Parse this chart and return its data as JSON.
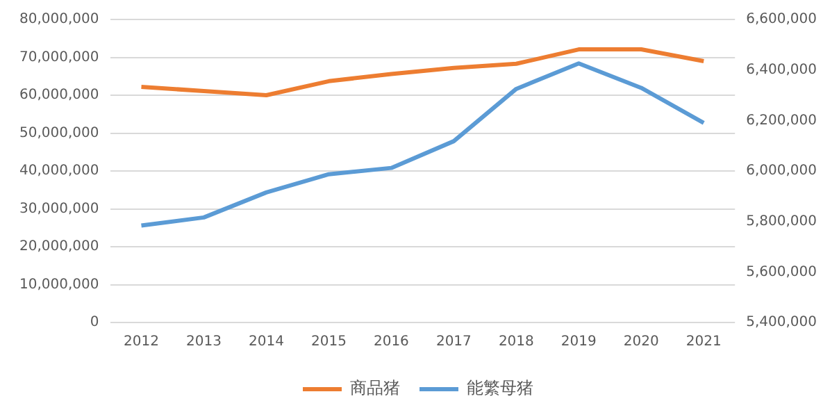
{
  "chart_data": {
    "type": "line",
    "categories": [
      "2012",
      "2013",
      "2014",
      "2015",
      "2016",
      "2017",
      "2018",
      "2019",
      "2020",
      "2021"
    ],
    "series": [
      {
        "name": "商品猪",
        "color": "#ed7d31",
        "values": [
          62200000,
          61100000,
          60000000,
          63700000,
          65600000,
          67200000,
          68300000,
          72100000,
          72100000,
          69000000
        ]
      },
      {
        "name": "能繁母猪",
        "color": "#5b9bd5",
        "axis": "y2",
        "values": [
          5784000,
          5816000,
          5915000,
          5987000,
          6012000,
          6118000,
          6325000,
          6426000,
          6329000,
          6190000
        ]
      }
    ],
    "ylim": [
      0,
      80000000
    ],
    "yticks": [
      0,
      {
        "value": 10000000,
        "label": "10,000,000"
      },
      {
        "value": 20000000,
        "label": "20,000,000"
      },
      {
        "value": 30000000,
        "label": "30,000,000"
      },
      {
        "value": 40000000,
        "label": "40,000,000"
      },
      {
        "value": 50000000,
        "label": "50,000,000"
      },
      {
        "value": 60000000,
        "label": "60,000,000"
      },
      {
        "value": 70000000,
        "label": "70,000,000"
      },
      {
        "value": 80000000,
        "label": "80,000,000"
      }
    ],
    "y2lim": [
      5400000,
      6600000
    ],
    "y2ticks": [
      {
        "value": 5400000,
        "label": "5,400,000"
      },
      {
        "value": 5600000,
        "label": "5,600,000"
      },
      {
        "value": 5800000,
        "label": "5,800,000"
      },
      {
        "value": 6000000,
        "label": "6,000,000"
      },
      {
        "value": 6200000,
        "label": "6,200,000"
      },
      {
        "value": 6400000,
        "label": "6,400,000"
      },
      {
        "value": 6600000,
        "label": "6,600,000"
      }
    ],
    "grid": "y",
    "legend": "bottom",
    "marker": "none",
    "line_style": "solid"
  }
}
